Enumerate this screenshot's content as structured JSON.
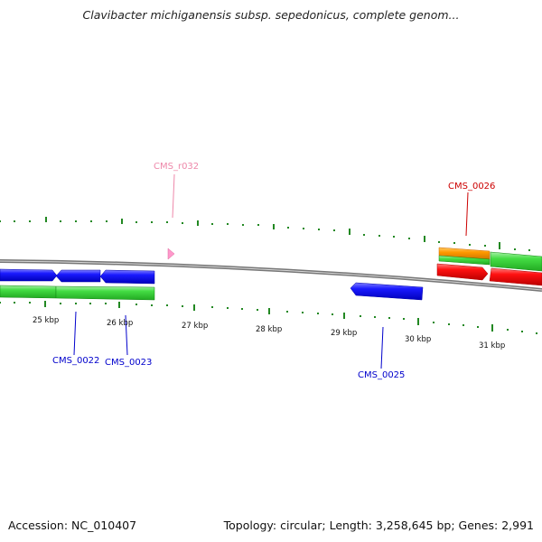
{
  "title": "Clavibacter michiganensis subsp. sepedonicus, complete genom...",
  "footer": {
    "accession": "Accession: NC_010407",
    "summary": "Topology: circular; Length: 3,258,645 bp; Genes: 2,991"
  },
  "colors": {
    "forward_cds": "#0000dd",
    "reverse_cds": "#33cc33",
    "rrna_like": "#ff8800",
    "highlight_red": "#dd0000",
    "rna_pink": "#ff88bb",
    "tick_green": "#228822",
    "backbone": "#888888",
    "label_blue": "#0000cc",
    "label_red": "#cc0000",
    "label_pink": "#ee88aa"
  },
  "scale_labels": [
    "25 kbp",
    "26 kbp",
    "27 kbp",
    "28 kbp",
    "29 kbp",
    "30 kbp",
    "31 kbp"
  ],
  "gene_labels": {
    "cms_0022": "CMS_0022",
    "cms_0023": "CMS_0023",
    "cms_0025": "CMS_0025",
    "cms_0026": "CMS_0026",
    "cms_r032": "CMS_r032"
  }
}
